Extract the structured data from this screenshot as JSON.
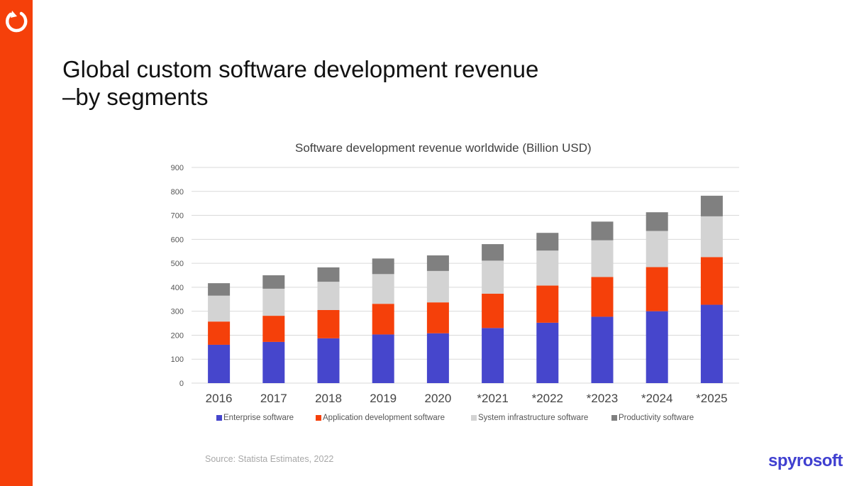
{
  "slide": {
    "title_line1": "Global custom software development revenue",
    "title_line2": "–by segments",
    "source": "Source: Statista Estimates, 2022",
    "brand": "spyrosoft",
    "accent_color": "#f5400a",
    "brand_color": "#3f3fd0",
    "logo_icon": "refresh-arrow-icon"
  },
  "chart_data": {
    "type": "bar",
    "stacked": true,
    "title": "Software development revenue worldwide (Billion USD)",
    "categories": [
      "2016",
      "2017",
      "2018",
      "2019",
      "2020",
      "*2021",
      "*2022",
      "*2023",
      "*2024",
      "*2025"
    ],
    "yticks": [
      "0",
      "100",
      "200",
      "300",
      "400",
      "500",
      "600",
      "700",
      "800",
      "900"
    ],
    "ylim": [
      0,
      900
    ],
    "grid": true,
    "legend_position": "bottom",
    "series": [
      {
        "name": "Enterprise software",
        "color": "#4646cc",
        "values": [
          160,
          172,
          187,
          203,
          208,
          230,
          252,
          277,
          300,
          327
        ]
      },
      {
        "name": "Application development software",
        "color": "#f5400a",
        "values": [
          97,
          109,
          118,
          128,
          129,
          143,
          155,
          166,
          184,
          199
        ]
      },
      {
        "name": "System infrastructure software",
        "color": "#d3d3d3",
        "values": [
          108,
          113,
          118,
          124,
          131,
          138,
          146,
          153,
          151,
          170
        ]
      },
      {
        "name": "Productivity software",
        "color": "#808080",
        "values": [
          52,
          56,
          60,
          65,
          65,
          69,
          74,
          78,
          78,
          86
        ]
      }
    ]
  }
}
